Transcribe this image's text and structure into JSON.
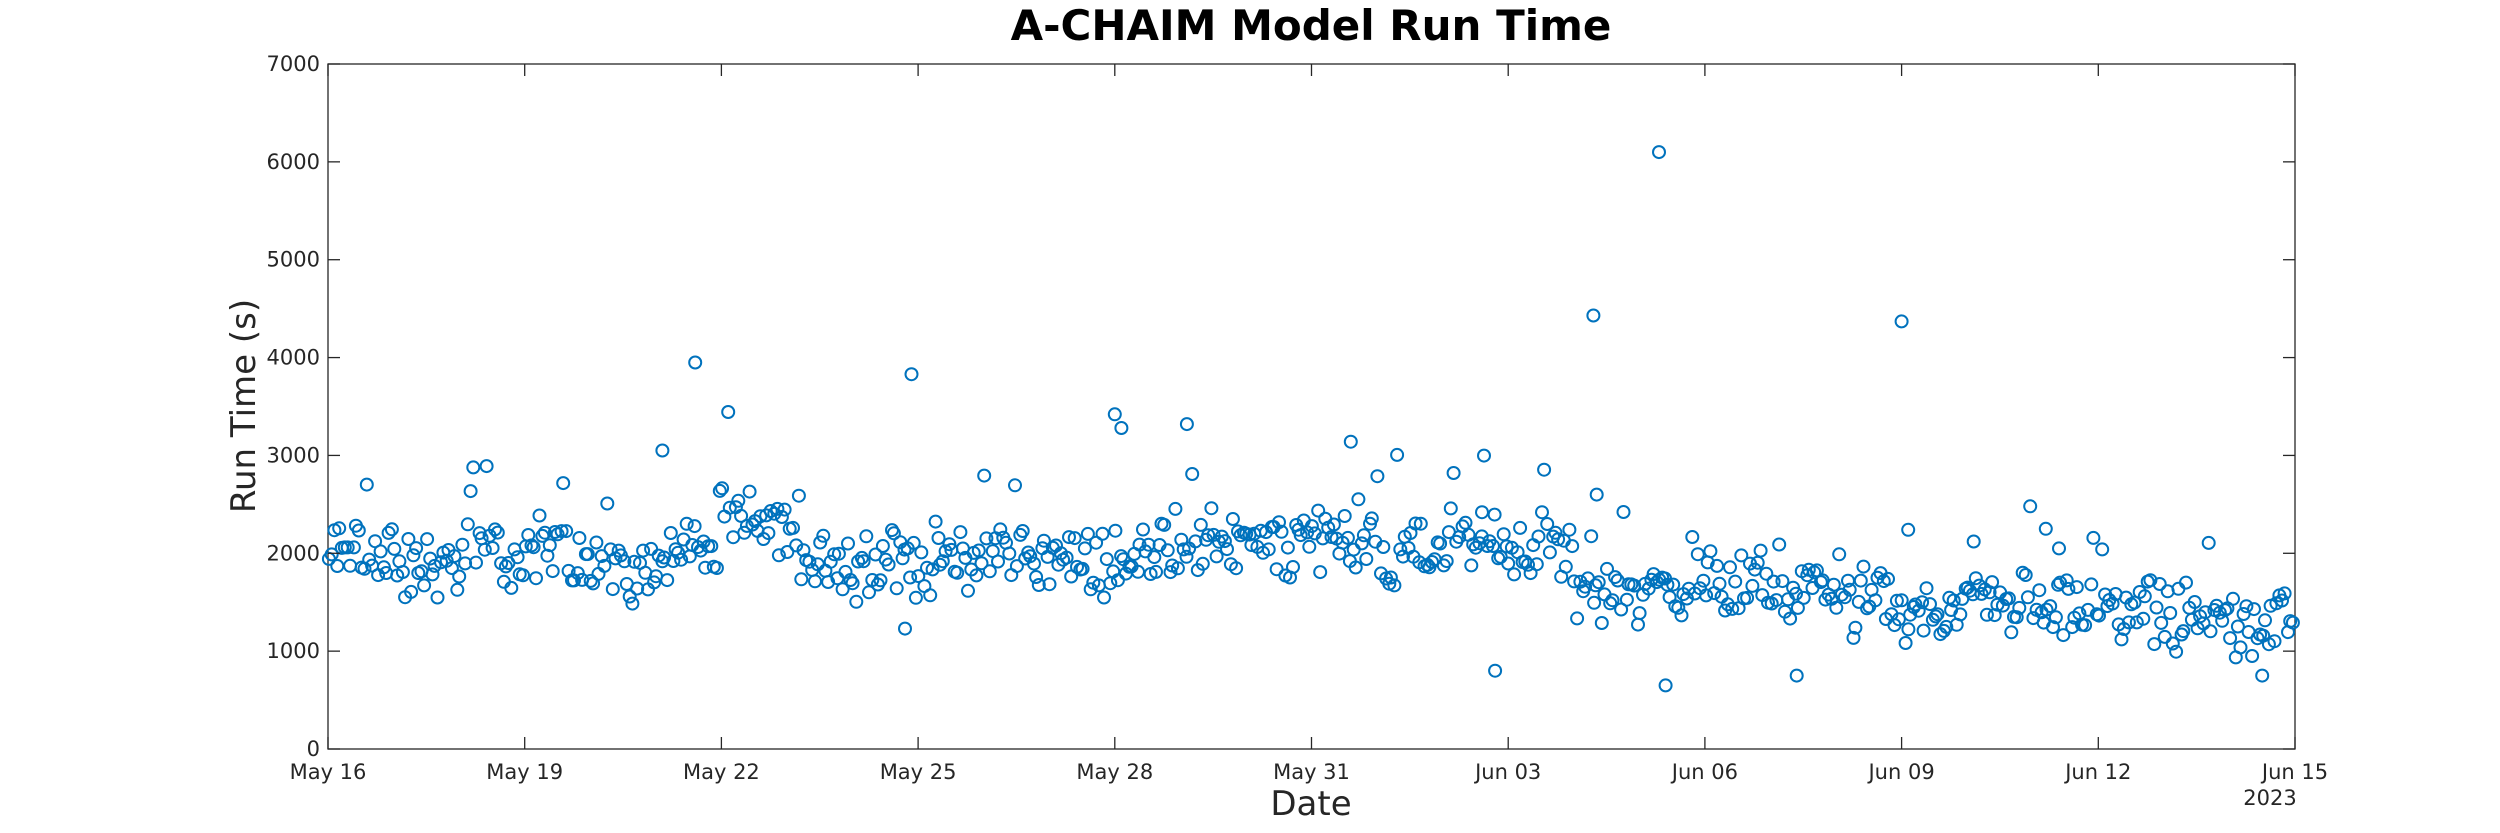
{
  "chart_data": {
    "type": "scatter",
    "title": "A-CHAIM Model Run Time",
    "xlabel": "Date",
    "ylabel": "Run Time (s)",
    "year_label": "2023",
    "x_tick_labels": [
      "May 16",
      "May 19",
      "May 22",
      "May 25",
      "May 28",
      "May 31",
      "Jun 03",
      "Jun 06",
      "Jun 09",
      "Jun 12",
      "Jun 15"
    ],
    "y_tick_labels": [
      "0",
      "1000",
      "2000",
      "3000",
      "4000",
      "5000",
      "6000",
      "7000"
    ],
    "xlim": [
      "2023-05-16",
      "2023-06-15"
    ],
    "ylim": [
      0,
      7000
    ],
    "grid": false,
    "legend": "none",
    "marker": "open-circle",
    "marker_color": "#0072BD",
    "points_per_day": 24,
    "daily_base": [
      2000,
      1850,
      1950,
      2000,
      1800,
      2050,
      2300,
      1950,
      1900,
      1950,
      2000,
      1900,
      1950,
      2150,
      2050,
      2200,
      2000,
      2150,
      2100,
      1600,
      1650,
      1700,
      1600,
      1500,
      1400,
      1500,
      1400,
      1400,
      1350,
      1300
    ],
    "outliers": [
      {
        "day": 5.1,
        "value": 3050
      },
      {
        "day": 5.6,
        "value": 3950
      },
      {
        "day": 8.9,
        "value": 3830
      },
      {
        "day": 12.0,
        "value": 3420
      },
      {
        "day": 12.1,
        "value": 3280
      },
      {
        "day": 13.1,
        "value": 3320
      },
      {
        "day": 15.6,
        "value": 3140
      },
      {
        "day": 17.8,
        "value": 800
      },
      {
        "day": 17.6,
        "value": 2420
      },
      {
        "day": 19.3,
        "value": 4430
      },
      {
        "day": 19.35,
        "value": 2600
      },
      {
        "day": 20.3,
        "value": 6100
      },
      {
        "day": 20.4,
        "value": 650
      },
      {
        "day": 22.4,
        "value": 750
      },
      {
        "day": 24.0,
        "value": 4370
      },
      {
        "day": 24.1,
        "value": 2240
      },
      {
        "day": 25.1,
        "value": 2120
      },
      {
        "day": 26.2,
        "value": 2250
      },
      {
        "day": 26.4,
        "value": 2050
      },
      {
        "day": 8.8,
        "value": 1230
      },
      {
        "day": 29.5,
        "value": 750
      }
    ]
  }
}
